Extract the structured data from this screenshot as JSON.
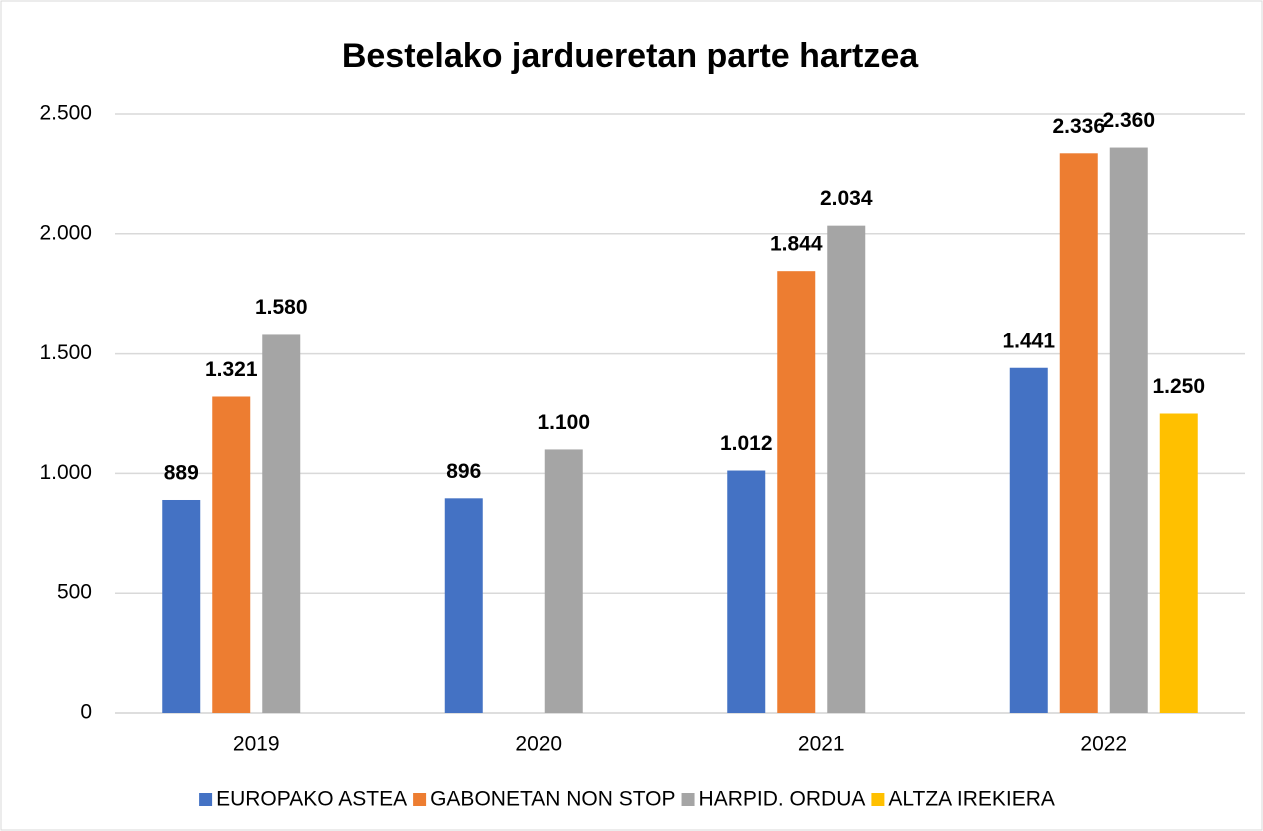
{
  "chart_data": {
    "type": "bar",
    "title": "Bestelako jardueretan parte hartzea",
    "categories": [
      "2019",
      "2020",
      "2021",
      "2022"
    ],
    "series": [
      {
        "name": "EUROPAKO ASTEA",
        "color": "#4472c4",
        "values": [
          889,
          896,
          1012,
          1441
        ],
        "value_labels": [
          "889",
          "896",
          "1.012",
          "1.441"
        ]
      },
      {
        "name": "GABONETAN NON STOP",
        "color": "#ed7d31",
        "values": [
          1321,
          null,
          1844,
          2336
        ],
        "value_labels": [
          "1.321",
          null,
          "1.844",
          "2.336"
        ]
      },
      {
        "name": "HARPID. ORDUA",
        "color": "#a5a5a5",
        "values": [
          1580,
          1100,
          2034,
          2360
        ],
        "value_labels": [
          "1.580",
          "1.100",
          "2.034",
          "2.360"
        ]
      },
      {
        "name": "ALTZA IREKIERA",
        "color": "#ffc000",
        "values": [
          null,
          null,
          null,
          1250
        ],
        "value_labels": [
          null,
          null,
          null,
          "1.250"
        ]
      }
    ],
    "ylim": [
      0,
      2500
    ],
    "yticks": [
      0,
      500,
      {
        "value": 1000,
        "label": "1.000"
      },
      {
        "value": 1500,
        "label": "1.500"
      },
      {
        "value": 2000,
        "label": "2.000"
      },
      {
        "value": 2500,
        "label": "2.500"
      }
    ],
    "grid": true,
    "legend": "bottom"
  }
}
